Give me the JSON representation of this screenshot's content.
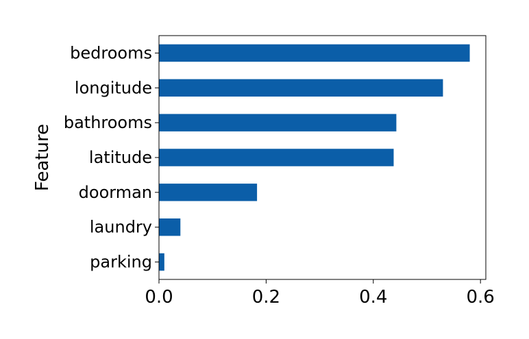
{
  "chart_data": {
    "type": "bar",
    "orientation": "horizontal",
    "categories": [
      "bedrooms",
      "longitude",
      "bathrooms",
      "latitude",
      "doorman",
      "laundry",
      "parking"
    ],
    "values": [
      0.58,
      0.53,
      0.443,
      0.438,
      0.183,
      0.04,
      0.01
    ],
    "title": "",
    "xlabel": "",
    "ylabel": "Feature",
    "xlim": [
      0.0,
      0.61
    ],
    "xticks": [
      0.0,
      0.2,
      0.4,
      0.6
    ],
    "xtick_labels": [
      "0.0",
      "0.2",
      "0.4",
      "0.6"
    ],
    "grid": false,
    "legend": "none",
    "bar_color": "#0b5ea8"
  }
}
